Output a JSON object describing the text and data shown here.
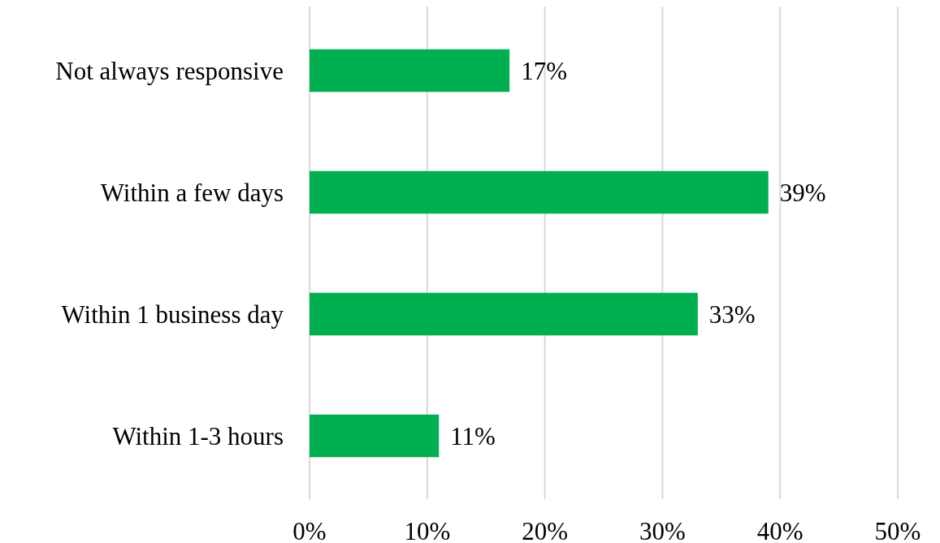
{
  "chart_data": {
    "type": "bar",
    "orientation": "horizontal",
    "categories": [
      "Not always responsive",
      "Within a few days",
      "Within 1 business day",
      "Within 1-3 hours"
    ],
    "values": [
      17,
      39,
      33,
      11
    ],
    "color": "#00b050",
    "value_labels": [
      "17%",
      "39%",
      "33%",
      "11%"
    ],
    "xlim": [
      0,
      50
    ],
    "xticks": [
      {
        "value": 0,
        "label": "0%"
      },
      {
        "value": 10,
        "label": "10%"
      },
      {
        "value": 20,
        "label": "20%"
      },
      {
        "value": 30,
        "label": "30%"
      },
      {
        "value": 40,
        "label": "40%"
      },
      {
        "value": 50,
        "label": "50%"
      }
    ],
    "grid": "x"
  }
}
